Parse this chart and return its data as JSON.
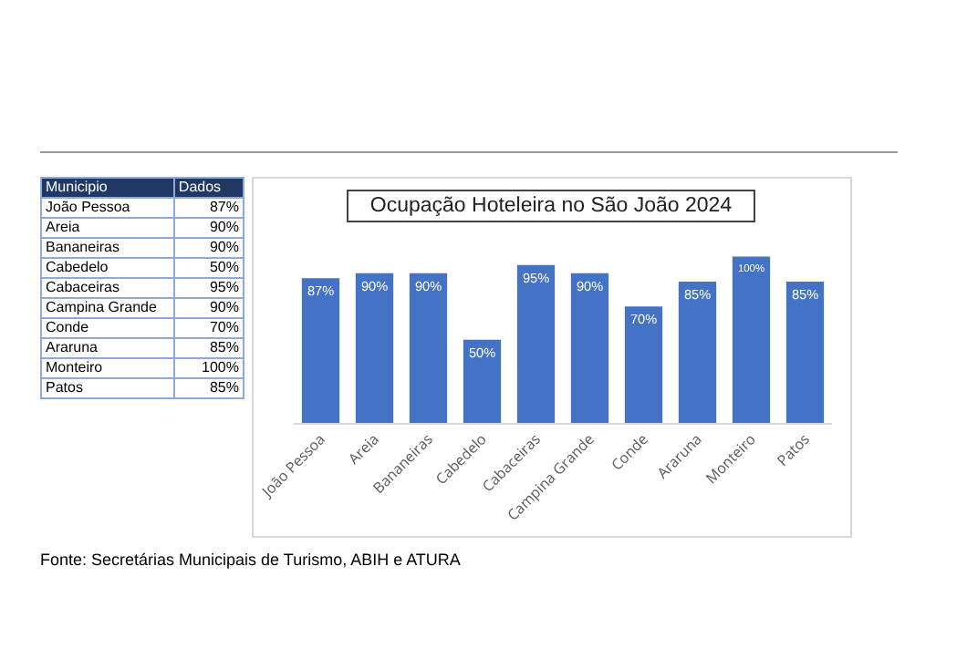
{
  "chart_data": {
    "type": "bar",
    "title": "Ocupação Hoteleira no São João 2024",
    "categories": [
      "João Pessoa",
      "Areia",
      "Bananeiras",
      "Cabedelo",
      "Cabaceiras",
      "Campina Grande",
      "Conde",
      "Araruna",
      "Monteiro",
      "Patos"
    ],
    "values": [
      87,
      90,
      90,
      50,
      95,
      90,
      70,
      85,
      100,
      85
    ],
    "value_labels": [
      "87%",
      "90%",
      "90%",
      "50%",
      "95%",
      "90%",
      "70%",
      "85%",
      "100%",
      "85%"
    ],
    "color": "#4472c4",
    "grid": false,
    "legend": false,
    "annotations": [
      "Municipio",
      "Dados",
      "Fonte: Secretárias Municipais de Turismo, ABIH e ATURA"
    ]
  }
}
